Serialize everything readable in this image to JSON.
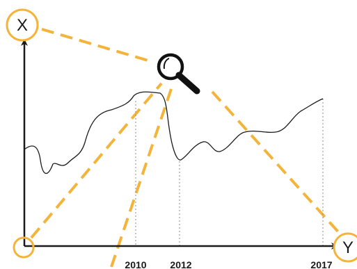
{
  "axes": {
    "y_axis_letter": "X",
    "x_axis_letter": "Y"
  },
  "ticks": [
    {
      "label": "2010"
    },
    {
      "label": "2012"
    },
    {
      "label": "2017"
    }
  ],
  "icons": {
    "magnifier": "magnifying-glass-icon"
  },
  "colors": {
    "accent": "#f4b43a",
    "ink": "#1a1a1a",
    "guide": "#8a8a8a"
  }
}
